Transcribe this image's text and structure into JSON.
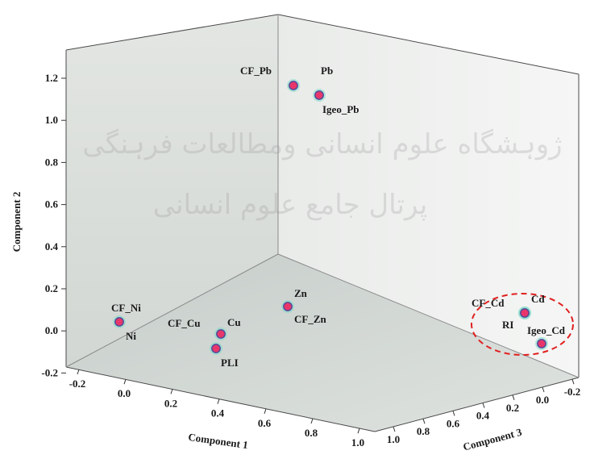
{
  "chart_data": {
    "type": "scatter",
    "projection": "3d",
    "title": "",
    "axes": {
      "x": {
        "label": "Component 1",
        "range": [
          -0.25,
          1.0
        ],
        "ticks": [
          "-0.2",
          "0.0",
          "0.2",
          "0.4",
          "0.6",
          "0.8",
          "1.0"
        ]
      },
      "y": {
        "label": "Component 2",
        "range": [
          -0.25,
          1.3
        ],
        "ticks": [
          "-0.2",
          "0.0",
          "0.2",
          "0.4",
          "0.6",
          "0.8",
          "1.0",
          "1.2"
        ]
      },
      "z": {
        "label": "Component 3",
        "range": [
          -0.25,
          1.0
        ],
        "ticks": [
          "1.0",
          "0.8",
          "0.6",
          "0.4",
          "0.2",
          "0.0",
          "-0.2"
        ]
      }
    },
    "points": [
      {
        "labels": [
          "CF_Pb",
          "Pb"
        ],
        "x": 0.55,
        "y": 1.15,
        "z": 0.2
      },
      {
        "labels": [
          "Igeo_Pb"
        ],
        "x": 0.6,
        "y": 1.1,
        "z": 0.25
      },
      {
        "labels": [
          "CF_Ni",
          "Ni"
        ],
        "x": -0.05,
        "y": 0.04,
        "z": 0.05
      },
      {
        "labels": [
          "CF_Cu",
          "Cu"
        ],
        "x": 0.35,
        "y": -0.02,
        "z": 0.0
      },
      {
        "labels": [
          "PLI"
        ],
        "x": 0.35,
        "y": -0.08,
        "z": 0.0
      },
      {
        "labels": [
          "Zn",
          "CF_Zn"
        ],
        "x": 0.75,
        "y": 0.13,
        "z": 0.35
      },
      {
        "labels": [
          "CF_Cd"
        ],
        "x": 0.95,
        "y": 0.1,
        "z": 0.05
      },
      {
        "labels": [
          "RI",
          "Cd"
        ],
        "x": 0.95,
        "y": 0.08,
        "z": 0.0
      },
      {
        "labels": [
          "Igeo_Cd"
        ],
        "x": 0.95,
        "y": -0.05,
        "z": -0.05
      }
    ],
    "annotations": [
      {
        "type": "dashed-ellipse",
        "color": "#e02020",
        "encloses": [
          "CF_Cd",
          "RI",
          "Cd",
          "Igeo_Cd"
        ]
      }
    ],
    "grid": false,
    "legend": "none",
    "colors": {
      "marker": "#e8366b",
      "marker_outline": "#4a4a9a",
      "marker_halo": "#7fd8c8",
      "pane": "#d9ddd9"
    }
  },
  "watermark": {
    "line1": "ژوہشگاه علوم انسانی ومطالعات فرہنگی",
    "line2": "پرتال جامع علوم انسانی"
  }
}
